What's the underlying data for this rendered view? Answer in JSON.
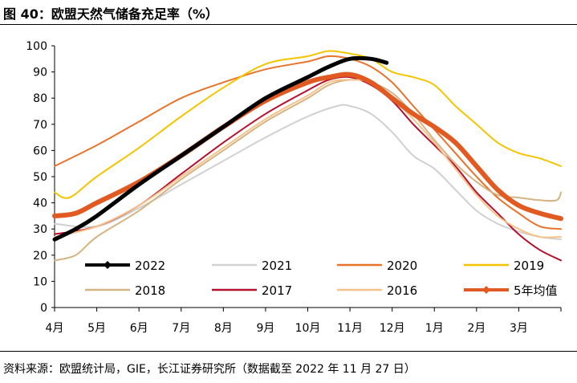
{
  "figure_title": "图 40：欧盟天然气储备充足率（%）",
  "source_note": "资料来源：欧盟统计局，GIE，长江证券研究所（数据截至 2022 年 11 月 27 日）",
  "chart_data": {
    "type": "line",
    "title": "",
    "xlabel": "",
    "ylabel": "",
    "x_ticks": [
      "4月",
      "5月",
      "6月",
      "7月",
      "8月",
      "9月",
      "10月",
      "11月",
      "12月",
      "1月",
      "2月",
      "3月"
    ],
    "x_range": [
      0,
      12
    ],
    "y_ticks": [
      0,
      10,
      20,
      30,
      40,
      50,
      60,
      70,
      80,
      90,
      100
    ],
    "ylim": [
      0,
      100
    ],
    "grid": false,
    "legend_position": "bottom-inside",
    "series": [
      {
        "name": "2022",
        "color": "#000000",
        "width": 5,
        "marker": "diamond",
        "points": [
          [
            0,
            26
          ],
          [
            0.5,
            30
          ],
          [
            1,
            35
          ],
          [
            2,
            47
          ],
          [
            3,
            58
          ],
          [
            4,
            69
          ],
          [
            5,
            80
          ],
          [
            6,
            88
          ],
          [
            6.5,
            92
          ],
          [
            7,
            95
          ],
          [
            7.5,
            95
          ],
          [
            7.87,
            93.5
          ]
        ]
      },
      {
        "name": "2021",
        "color": "#d0d0d0",
        "width": 2,
        "points": [
          [
            0,
            32
          ],
          [
            1,
            31
          ],
          [
            2,
            38
          ],
          [
            3,
            47
          ],
          [
            4,
            56
          ],
          [
            5,
            65
          ],
          [
            6,
            73
          ],
          [
            6.7,
            77
          ],
          [
            7,
            77
          ],
          [
            7.5,
            74
          ],
          [
            8,
            67
          ],
          [
            8.5,
            58
          ],
          [
            9,
            53
          ],
          [
            9.5,
            45
          ],
          [
            10,
            37
          ],
          [
            10.5,
            32
          ],
          [
            11,
            29
          ],
          [
            11.5,
            27
          ],
          [
            12,
            26
          ]
        ]
      },
      {
        "name": "2020",
        "color": "#e8732a",
        "width": 2,
        "points": [
          [
            0,
            54
          ],
          [
            1,
            62
          ],
          [
            2,
            71
          ],
          [
            3,
            80
          ],
          [
            4,
            86
          ],
          [
            5,
            91
          ],
          [
            6,
            94
          ],
          [
            6.5,
            96
          ],
          [
            7,
            95
          ],
          [
            7.5,
            92
          ],
          [
            8,
            86
          ],
          [
            8.5,
            77
          ],
          [
            9,
            68
          ],
          [
            9.5,
            59
          ],
          [
            10,
            50
          ],
          [
            10.5,
            42
          ],
          [
            11,
            36
          ],
          [
            11.5,
            31
          ],
          [
            12,
            30
          ]
        ]
      },
      {
        "name": "2019",
        "color": "#f5c400",
        "width": 2,
        "points": [
          [
            0,
            44
          ],
          [
            0.35,
            42
          ],
          [
            1,
            50
          ],
          [
            2,
            61
          ],
          [
            3,
            73
          ],
          [
            4,
            84
          ],
          [
            5,
            93
          ],
          [
            6,
            96
          ],
          [
            6.5,
            98
          ],
          [
            7,
            97
          ],
          [
            7.5,
            95
          ],
          [
            8,
            90
          ],
          [
            8.5,
            88
          ],
          [
            9,
            85
          ],
          [
            9.5,
            77
          ],
          [
            10,
            70
          ],
          [
            10.5,
            63
          ],
          [
            11,
            59
          ],
          [
            11.5,
            57
          ],
          [
            12,
            54
          ]
        ]
      },
      {
        "name": "2018",
        "color": "#d4b483",
        "width": 2,
        "points": [
          [
            0,
            18
          ],
          [
            0.5,
            20
          ],
          [
            1,
            27
          ],
          [
            2,
            37
          ],
          [
            3,
            49
          ],
          [
            4,
            60
          ],
          [
            5,
            71
          ],
          [
            6,
            80
          ],
          [
            6.5,
            85
          ],
          [
            7,
            87
          ],
          [
            7.5,
            86
          ],
          [
            8,
            82
          ],
          [
            8.5,
            74
          ],
          [
            9,
            64
          ],
          [
            9.5,
            55
          ],
          [
            10,
            48
          ],
          [
            10.5,
            43
          ],
          [
            11,
            42
          ],
          [
            11.5,
            41
          ],
          [
            11.9,
            41
          ],
          [
            12,
            44
          ]
        ]
      },
      {
        "name": "2017",
        "color": "#b5102e",
        "width": 2,
        "points": [
          [
            0,
            28
          ],
          [
            1,
            31
          ],
          [
            2,
            39
          ],
          [
            3,
            51
          ],
          [
            4,
            63
          ],
          [
            5,
            74
          ],
          [
            6,
            83
          ],
          [
            6.5,
            87
          ],
          [
            7,
            88
          ],
          [
            7.5,
            85
          ],
          [
            8,
            79
          ],
          [
            8.5,
            70
          ],
          [
            9,
            62
          ],
          [
            9.5,
            54
          ],
          [
            10,
            44
          ],
          [
            10.5,
            36
          ],
          [
            11,
            28
          ],
          [
            11.5,
            22
          ],
          [
            12,
            18
          ]
        ]
      },
      {
        "name": "2016",
        "color": "#f5c28a",
        "width": 2,
        "points": [
          [
            0,
            27
          ],
          [
            1,
            31
          ],
          [
            2,
            39
          ],
          [
            3,
            50
          ],
          [
            4,
            61
          ],
          [
            5,
            72
          ],
          [
            6,
            81
          ],
          [
            6.5,
            86
          ],
          [
            7,
            87
          ],
          [
            7.5,
            86
          ],
          [
            8,
            80
          ],
          [
            8.5,
            72
          ],
          [
            9,
            63
          ],
          [
            9.5,
            53
          ],
          [
            10,
            43
          ],
          [
            10.5,
            35
          ],
          [
            11,
            30
          ],
          [
            11.5,
            27
          ],
          [
            12,
            27
          ]
        ]
      },
      {
        "name": "5年均值",
        "color": "#e05a22",
        "width": 6,
        "marker": "diamond",
        "points": [
          [
            0,
            35
          ],
          [
            0.5,
            36
          ],
          [
            1,
            40
          ],
          [
            2,
            48
          ],
          [
            3,
            58
          ],
          [
            4,
            69
          ],
          [
            5,
            79
          ],
          [
            6,
            86
          ],
          [
            6.5,
            88
          ],
          [
            7,
            89
          ],
          [
            7.5,
            86
          ],
          [
            8,
            80
          ],
          [
            8.5,
            74
          ],
          [
            9,
            69
          ],
          [
            9.5,
            63
          ],
          [
            10,
            54
          ],
          [
            10.5,
            45
          ],
          [
            11,
            39
          ],
          [
            11.5,
            36
          ],
          [
            12,
            34
          ]
        ]
      }
    ]
  }
}
